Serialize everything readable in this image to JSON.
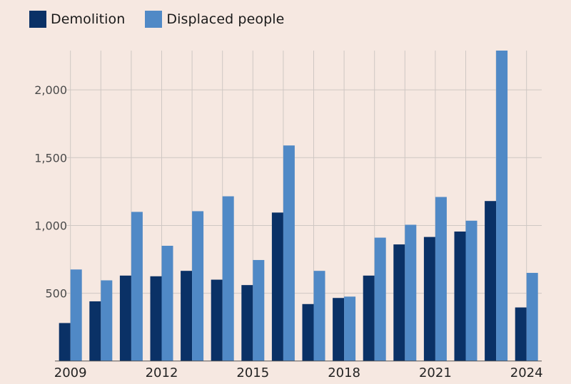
{
  "chart_data": {
    "type": "bar",
    "title": "",
    "xlabel": "",
    "ylabel": "",
    "categories": [
      "2009",
      "2010",
      "2011",
      "2012",
      "2013",
      "2014",
      "2015",
      "2016",
      "2017",
      "2018",
      "2019",
      "2020",
      "2021",
      "2022",
      "2023",
      "2024"
    ],
    "x_tick_labels": [
      "2009",
      "2012",
      "2015",
      "2018",
      "2021",
      "2024"
    ],
    "y_ticks": [
      500,
      1000,
      1500,
      2000
    ],
    "y_tick_labels": [
      "500",
      "1,000",
      "1,500",
      "2,000"
    ],
    "ylim": [
      0,
      2290
    ],
    "grid": true,
    "legend_position": "top-left",
    "series": [
      {
        "name": "Demolition",
        "color": "#0a3166",
        "values": [
          280,
          440,
          630,
          625,
          665,
          600,
          560,
          1095,
          420,
          465,
          630,
          860,
          915,
          955,
          1180,
          395
        ]
      },
      {
        "name": "Displaced people",
        "color": "#5089c6",
        "values": [
          675,
          595,
          1100,
          850,
          1105,
          1215,
          745,
          1590,
          665,
          475,
          910,
          1005,
          1210,
          1035,
          2290,
          650
        ]
      }
    ]
  },
  "colors": {
    "background": "#f6e8e1",
    "grid": "#cfc7c3",
    "axis": "#555555"
  }
}
